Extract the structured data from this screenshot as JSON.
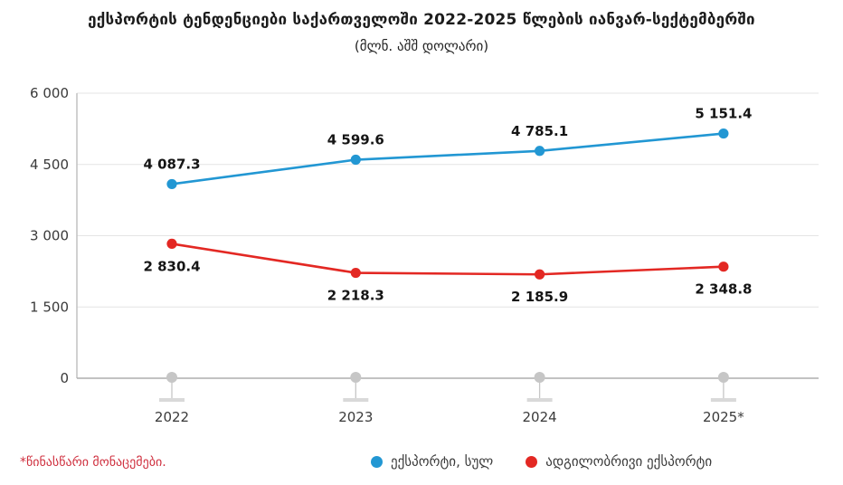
{
  "header": {
    "title": "ექსპორტის ტენდენციები საქართველოში 2022-2025 წლების იანვარ-სექტემბერში",
    "subtitle": "(მლნ. აშშ დოლარი)"
  },
  "chart_data": {
    "type": "line",
    "categories": [
      "2022",
      "2023",
      "2024",
      "2025*"
    ],
    "series": [
      {
        "name": "ექსპორტი, სულ",
        "color": "#2297d3",
        "values": [
          4087.3,
          4599.6,
          4785.1,
          5151.4
        ],
        "label_position": "above"
      },
      {
        "name": "ადგილობრივი ექსპორტი",
        "color": "#e32823",
        "values": [
          2830.4,
          2218.3,
          2185.9,
          2348.8
        ],
        "label_position": "below"
      }
    ],
    "ylim": [
      0,
      6000
    ],
    "yticks": [
      0,
      1500,
      3000,
      4500,
      6000
    ],
    "ytick_labels": [
      "0",
      "1 500",
      "3 000",
      "4 500",
      "6 000"
    ],
    "grid": true,
    "legend_position": "bottom",
    "data_labels": [
      "4 087.3",
      "4 599.6",
      "4 785.1",
      "5 151.4",
      "2 830.4",
      "2 218.3",
      "2 185.9",
      "2 348.8"
    ]
  },
  "footnote": {
    "text": "*წინასწარი მონაცემები.",
    "color": "#cf2f3e"
  }
}
